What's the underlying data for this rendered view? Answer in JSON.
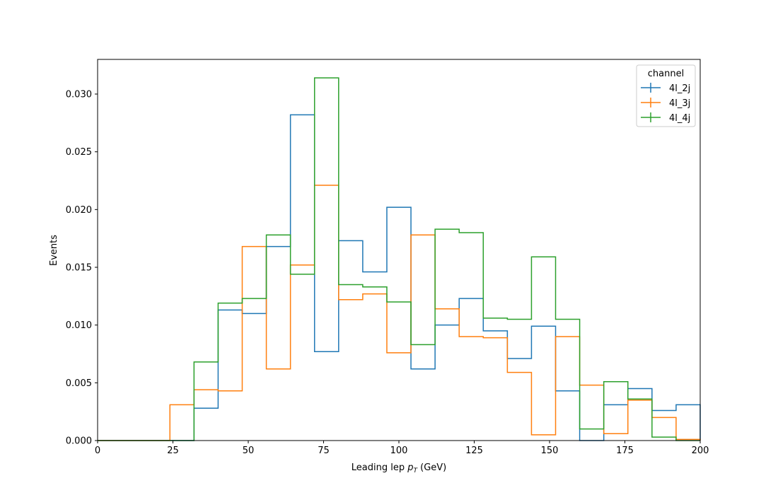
{
  "chart_data": {
    "type": "step",
    "xlabel_main": "Leading lep ",
    "xlabel_sym": "p",
    "xlabel_sub": "T",
    "xlabel_unit": " (GeV)",
    "ylabel": "Events",
    "xlim": [
      0,
      200
    ],
    "ylim": [
      0,
      0.033
    ],
    "xticks": [
      0,
      25,
      50,
      75,
      100,
      125,
      150,
      175,
      200
    ],
    "yticks": [
      0.0,
      0.005,
      0.01,
      0.015,
      0.02,
      0.025,
      0.03
    ],
    "ytick_labels": [
      "0.000",
      "0.005",
      "0.010",
      "0.015",
      "0.020",
      "0.025",
      "0.030"
    ],
    "grid": false,
    "legend": {
      "title": "channel",
      "position": "top-right"
    },
    "bin_edges": [
      0,
      8,
      16,
      24,
      32,
      40,
      48,
      56,
      64,
      72,
      80,
      88,
      96,
      104,
      112,
      120,
      128,
      136,
      144,
      152,
      160,
      168,
      176,
      184,
      192,
      200
    ],
    "series": [
      {
        "name": "4l_2j",
        "color": "#1f77b4",
        "values": [
          0,
          0,
          0,
          0,
          0.0028,
          0.0113,
          0.011,
          0.0168,
          0.0282,
          0.0077,
          0.0173,
          0.0146,
          0.0202,
          0.0062,
          0.01,
          0.0123,
          0.0095,
          0.0071,
          0.0099,
          0.0043,
          0.0,
          0.0031,
          0.0045,
          0.0026,
          0.0031
        ]
      },
      {
        "name": "4l_3j",
        "color": "#ff7f0e",
        "values": [
          0,
          0,
          0,
          0.0031,
          0.0044,
          0.0043,
          0.0168,
          0.0062,
          0.0152,
          0.0221,
          0.0122,
          0.0127,
          0.0076,
          0.0178,
          0.0114,
          0.009,
          0.0089,
          0.0059,
          0.0005,
          0.009,
          0.0048,
          0.0006,
          0.0035,
          0.002,
          0.0001
        ]
      },
      {
        "name": "4l_4j",
        "color": "#2ca02c",
        "values": [
          0,
          0,
          0,
          0,
          0.0068,
          0.0119,
          0.0123,
          0.0178,
          0.0144,
          0.0314,
          0.0135,
          0.0133,
          0.012,
          0.0083,
          0.0183,
          0.018,
          0.0106,
          0.0105,
          0.0159,
          0.0105,
          0.001,
          0.0051,
          0.0036,
          0.0003,
          0.0
        ]
      }
    ]
  }
}
